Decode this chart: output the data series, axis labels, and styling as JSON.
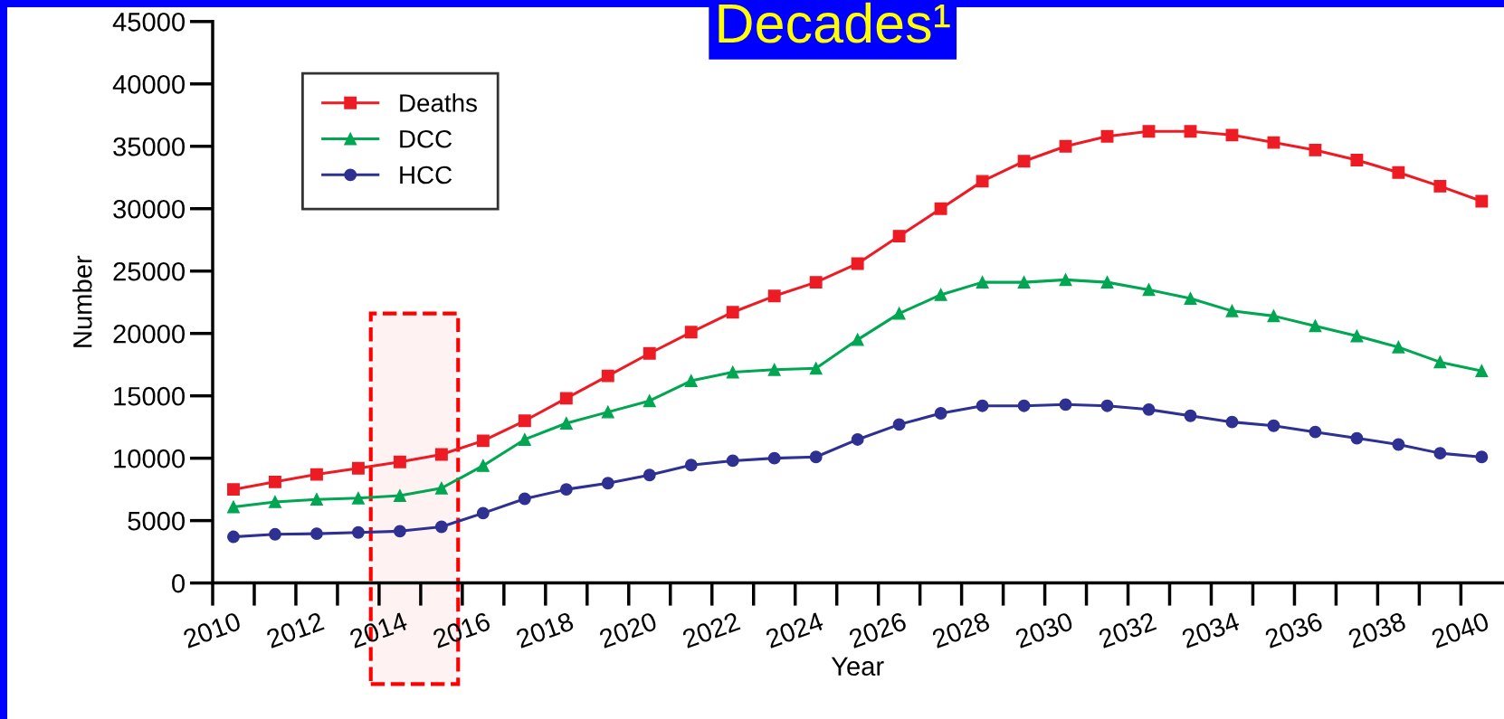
{
  "chart_data": {
    "type": "line",
    "title": "Decades¹",
    "xlabel": "Year",
    "ylabel": "Number",
    "x": [
      2010.5,
      2011.5,
      2012.5,
      2013.5,
      2014.5,
      2015.5,
      2016.5,
      2017.5,
      2018.5,
      2019.5,
      2020.5,
      2021.5,
      2022.5,
      2023.5,
      2024.5,
      2025.5,
      2026.5,
      2027.5,
      2028.5,
      2029.5,
      2030.5,
      2031.5,
      2032.5,
      2033.5,
      2034.5,
      2035.5,
      2036.5,
      2037.5,
      2038.5,
      2039.5,
      2040.5
    ],
    "series": [
      {
        "name": "Deaths",
        "color": "#ed1c24",
        "marker": "square",
        "values": [
          7500,
          8100,
          8700,
          9200,
          9700,
          10300,
          11400,
          13000,
          14800,
          16600,
          18400,
          20100,
          21700,
          23000,
          24100,
          25600,
          27800,
          30000,
          32200,
          33800,
          35000,
          35800,
          36200,
          36200,
          35900,
          35300,
          34700,
          33900,
          32900,
          31800,
          30600
        ]
      },
      {
        "name": "DCC",
        "color": "#00a651",
        "marker": "triangle",
        "values": [
          6100,
          6500,
          6700,
          6800,
          7000,
          7600,
          9400,
          11500,
          12800,
          13700,
          14600,
          16200,
          16900,
          17100,
          17200,
          19500,
          21600,
          23100,
          24100,
          24100,
          24300,
          24100,
          23500,
          22800,
          21800,
          21400,
          20600,
          19800,
          18900,
          17700,
          17000
        ]
      },
      {
        "name": "HCC",
        "color": "#2e3192",
        "marker": "circle",
        "values": [
          3700,
          3900,
          3950,
          4050,
          4150,
          4500,
          5600,
          6750,
          7500,
          8000,
          8650,
          9450,
          9800,
          10000,
          10100,
          11500,
          12700,
          13600,
          14200,
          14200,
          14300,
          14200,
          13900,
          13400,
          12900,
          12600,
          12100,
          11600,
          11100,
          10400,
          10100
        ]
      }
    ],
    "xlim": [
      2010,
      2041
    ],
    "xticks": [
      2010,
      2012,
      2014,
      2016,
      2018,
      2020,
      2022,
      2024,
      2026,
      2028,
      2030,
      2032,
      2034,
      2036,
      2038,
      2040
    ],
    "bands": [
      {
        "axis": "x",
        "from": 2013.8,
        "to": 2015.9,
        "color": "#ff0000"
      }
    ],
    "ylim": [
      0,
      45000
    ],
    "yticks": [
      0,
      5000,
      10000,
      15000,
      20000,
      25000,
      30000,
      35000,
      40000,
      45000
    ],
    "legend": "top left",
    "grid": false,
    "line_style": "solid"
  }
}
